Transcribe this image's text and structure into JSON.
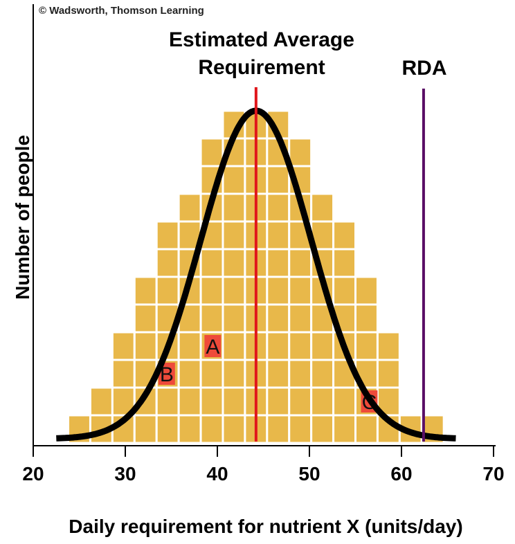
{
  "copyright": "© Wadsworth, Thomson Learning",
  "chart_data": {
    "type": "bar",
    "xlabel": "Daily requirement for nutrient X (units/day)",
    "ylabel": "Number of people",
    "xlim": [
      20,
      70
    ],
    "xticks": [
      20,
      30,
      40,
      50,
      60,
      70
    ],
    "ylim": [
      0,
      12
    ],
    "bin_width": 2.4,
    "bins": [
      {
        "start": 23.8,
        "count": 1
      },
      {
        "start": 26.2,
        "count": 2
      },
      {
        "start": 28.6,
        "count": 4
      },
      {
        "start": 31.0,
        "count": 6
      },
      {
        "start": 33.4,
        "count": 8
      },
      {
        "start": 35.8,
        "count": 9
      },
      {
        "start": 38.2,
        "count": 11
      },
      {
        "start": 40.6,
        "count": 12
      },
      {
        "start": 43.0,
        "count": 12
      },
      {
        "start": 45.4,
        "count": 12
      },
      {
        "start": 47.8,
        "count": 11
      },
      {
        "start": 50.2,
        "count": 9
      },
      {
        "start": 52.6,
        "count": 8
      },
      {
        "start": 55.0,
        "count": 6
      },
      {
        "start": 57.4,
        "count": 4
      },
      {
        "start": 59.8,
        "count": 1
      },
      {
        "start": 62.2,
        "count": 1
      }
    ],
    "curve": {
      "mean": 44.2,
      "sd": 6.0,
      "peak": 12.0,
      "x_from": 22.5,
      "x_to": 66.0
    },
    "markers": [
      {
        "label": "Estimated Average Requirement",
        "x": 44.2,
        "color": "#e0161b"
      },
      {
        "label": "RDA",
        "x": 62.4,
        "color": "#5a0f66"
      }
    ],
    "points": [
      {
        "label": "A",
        "x": 39.5,
        "y": 3.5
      },
      {
        "label": "B",
        "x": 34.5,
        "y": 2.5
      },
      {
        "label": "C",
        "x": 56.5,
        "y": 1.5
      }
    ],
    "colors": {
      "bar": "#e8b84a",
      "highlight": "#ee4a3a",
      "grid": "#ffffff",
      "curve": "#000000"
    }
  }
}
